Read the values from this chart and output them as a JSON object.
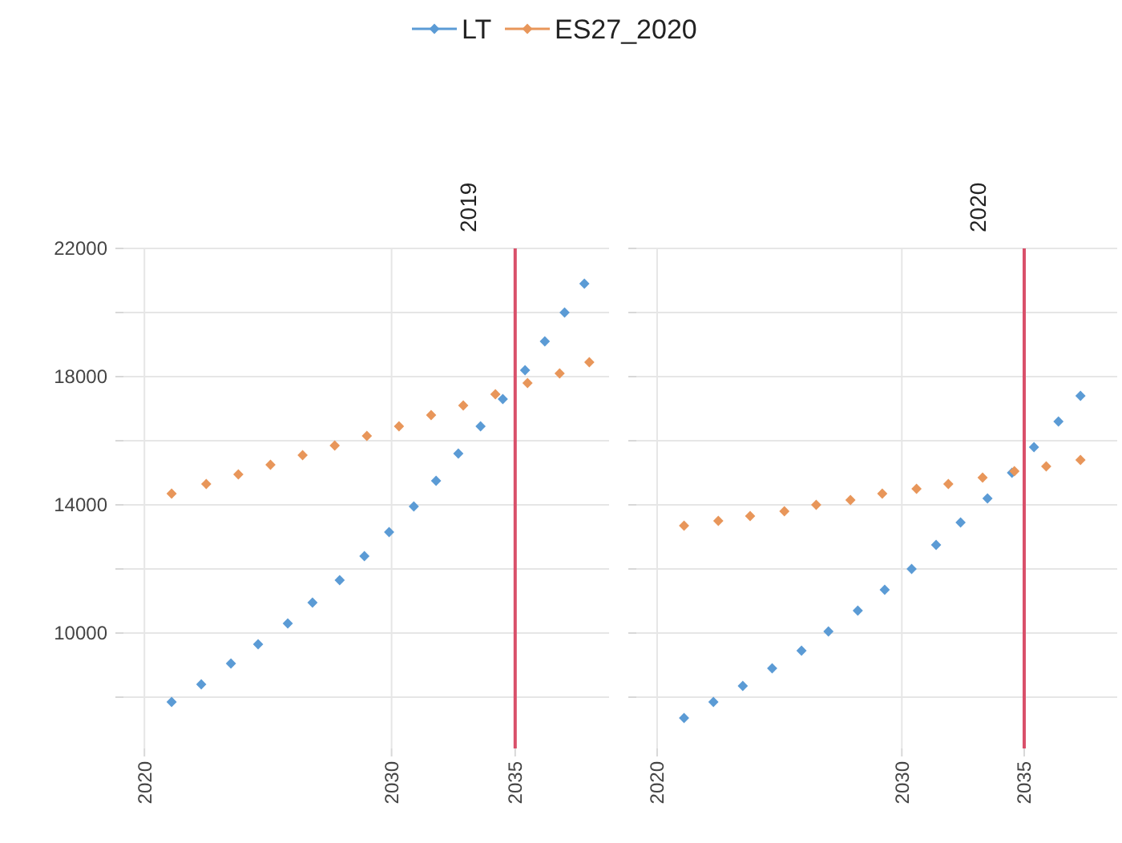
{
  "chart_data": [
    {
      "type": "scatter",
      "title": "2019",
      "marker": "diamond",
      "legend": "top",
      "grid": true,
      "xlim": [
        2019.15,
        2038.8
      ],
      "xticks": [
        2020,
        2030,
        2035
      ],
      "ylim": [
        6400,
        22000
      ],
      "yticks": [
        {
          "value": 8000,
          "label": null
        },
        10000,
        {
          "value": 12000,
          "label": null
        },
        14000,
        {
          "value": 16000,
          "label": null
        },
        18000,
        {
          "value": 20000,
          "label": null
        },
        22000
      ],
      "ref_lines": [
        {
          "axis": "x",
          "value": 2035,
          "color": "#d9506a"
        }
      ],
      "series": [
        {
          "name": "LT",
          "color": "#5b9bd5",
          "x": [
            2021.1,
            2022.3,
            2023.5,
            2024.6,
            2025.8,
            2026.8,
            2027.9,
            2028.9,
            2029.9,
            2030.9,
            2031.8,
            2032.7,
            2033.6,
            2034.5,
            2035.4,
            2036.2,
            2037.0,
            2037.8
          ],
          "values": [
            7850,
            8400,
            9050,
            9650,
            10300,
            10950,
            11650,
            12400,
            13150,
            13950,
            14750,
            15600,
            16450,
            17300,
            18200,
            19100,
            20000,
            20900
          ]
        },
        {
          "name": "ES27_2020",
          "color": "#e8965a",
          "x": [
            2021.1,
            2022.5,
            2023.8,
            2025.1,
            2026.4,
            2027.7,
            2029.0,
            2030.3,
            2031.6,
            2032.9,
            2034.2,
            2035.5,
            2036.8,
            2038.0
          ],
          "values": [
            14350,
            14650,
            14950,
            15250,
            15550,
            15850,
            16150,
            16450,
            16800,
            17100,
            17450,
            17800,
            18100,
            18450
          ]
        }
      ]
    },
    {
      "type": "scatter",
      "title": "2020",
      "marker": "diamond",
      "grid": true,
      "tick_labels": "x",
      "xlim": [
        2019.15,
        2038.8
      ],
      "xticks": [
        2020,
        2030,
        2035
      ],
      "ylim": [
        6400,
        22000
      ],
      "yticks": [
        {
          "value": 8000,
          "label": null
        },
        10000,
        {
          "value": 12000,
          "label": null
        },
        14000,
        {
          "value": 16000,
          "label": null
        },
        18000,
        {
          "value": 20000,
          "label": null
        },
        22000
      ],
      "ref_lines": [
        {
          "axis": "x",
          "value": 2035,
          "color": "#d9506a"
        }
      ],
      "series": [
        {
          "name": "LT",
          "color": "#5b9bd5",
          "x": [
            2021.1,
            2022.3,
            2023.5,
            2024.7,
            2025.9,
            2027.0,
            2028.2,
            2029.3,
            2030.4,
            2031.4,
            2032.4,
            2033.5,
            2034.5,
            2035.4,
            2036.4,
            2037.3
          ],
          "values": [
            7350,
            7850,
            8350,
            8900,
            9450,
            10050,
            10700,
            11350,
            12000,
            12750,
            13450,
            14200,
            15000,
            15800,
            16600,
            17400
          ]
        },
        {
          "name": "ES27_2020",
          "color": "#e8965a",
          "x": [
            2021.1,
            2022.5,
            2023.8,
            2025.2,
            2026.5,
            2027.9,
            2029.2,
            2030.6,
            2031.9,
            2033.3,
            2034.6,
            2035.9,
            2037.3
          ],
          "values": [
            13350,
            13500,
            13650,
            13800,
            14000,
            14150,
            14350,
            14500,
            14650,
            14850,
            15050,
            15200,
            15400
          ]
        }
      ]
    }
  ]
}
